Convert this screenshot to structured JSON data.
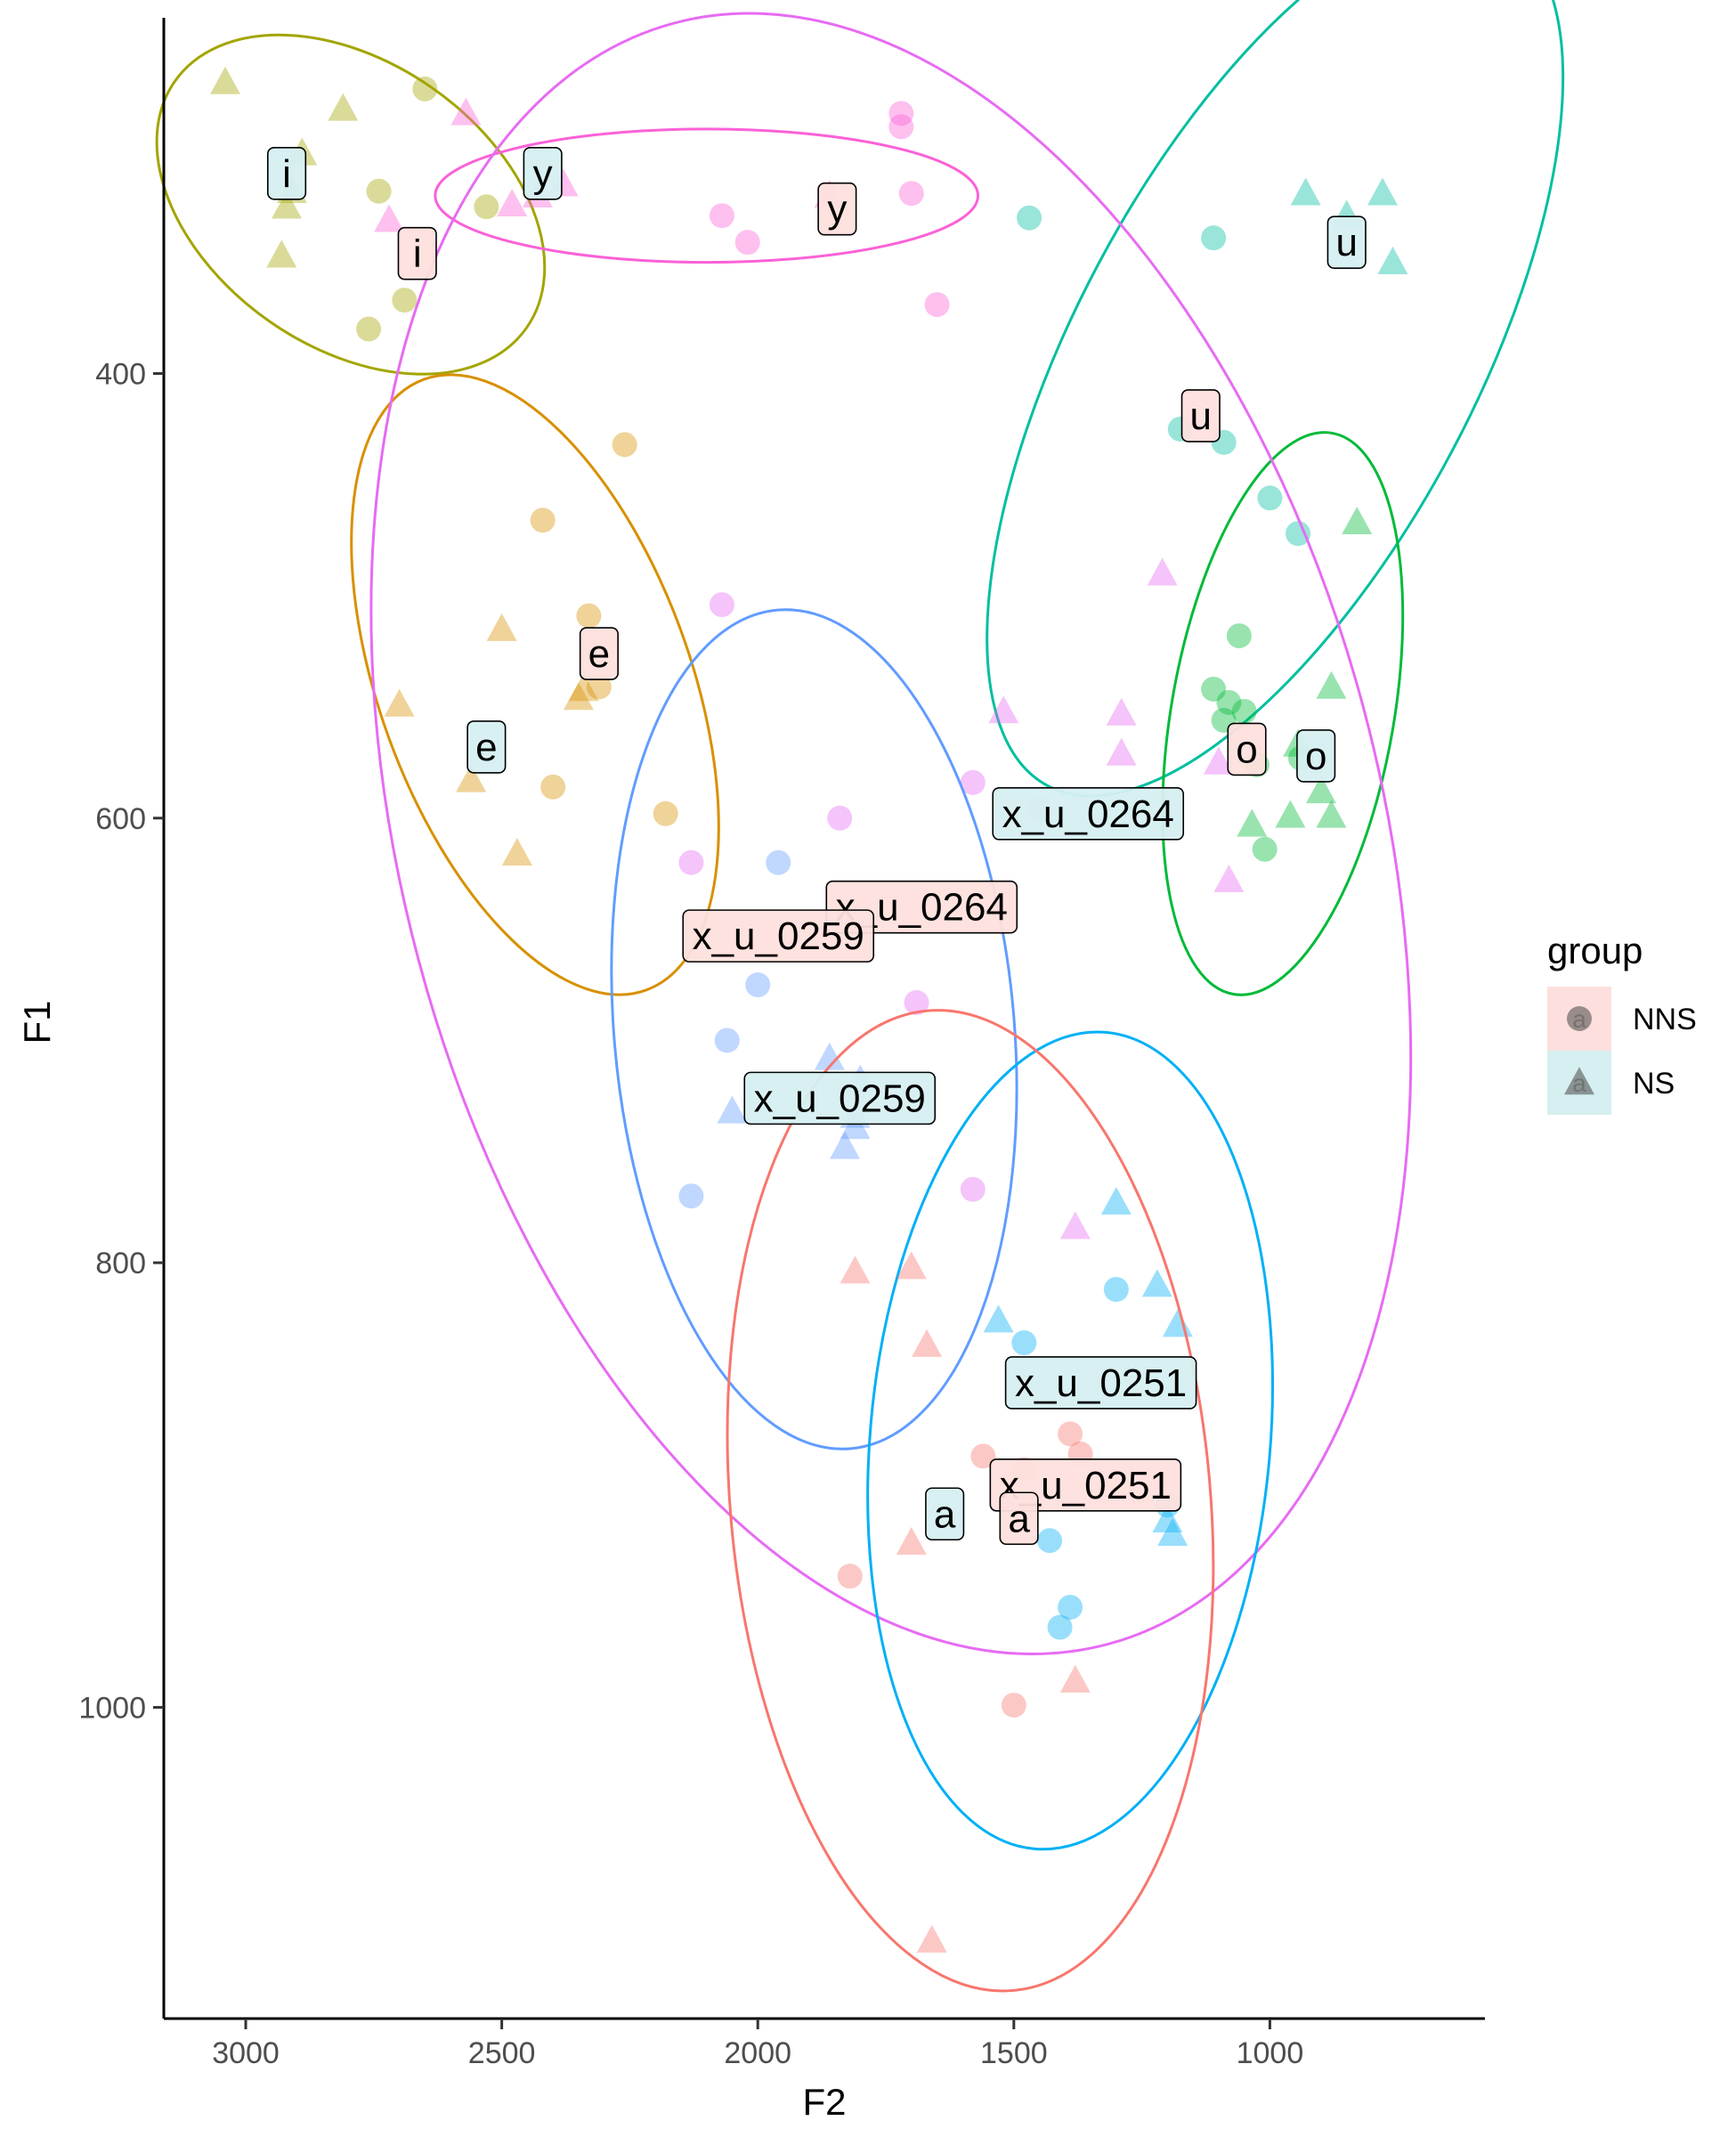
{
  "chart_data": {
    "type": "scatter",
    "title": "",
    "xlabel": "F2",
    "ylabel": "F1",
    "x_axis_reversed": true,
    "y_axis_reversed": true,
    "xlim": [
      3160,
      580
    ],
    "ylim": [
      1140,
      240
    ],
    "x_ticks": [
      3000,
      2500,
      2000,
      1500,
      1000
    ],
    "x_tick_labels": [
      "3000",
      "2500",
      "2000",
      "1500",
      "1000"
    ],
    "y_ticks": [
      400,
      600,
      800,
      1000
    ],
    "y_tick_labels": [
      "400",
      "600",
      "800",
      "1000"
    ],
    "grid": false,
    "legend": {
      "title": "group",
      "position": "right",
      "entries": [
        {
          "label": "NNS",
          "shape": "circle",
          "key_glyph": "a",
          "fill": "#fde0dd"
        },
        {
          "label": "NS",
          "shape": "triangle",
          "key_glyph": "a",
          "fill": "#d6eff1"
        }
      ]
    },
    "group_label_fills": {
      "NNS": "#fde0dd",
      "NS": "#d6eff1"
    },
    "vowels": [
      {
        "vowel": "i",
        "color": "#a3a500",
        "NNS": [
          [
            2650,
            272
          ],
          [
            2740,
            318
          ],
          [
            2760,
            380
          ],
          [
            2690,
            367
          ],
          [
            2530,
            325
          ]
        ],
        "NS": [
          [
            3040,
            269
          ],
          [
            2810,
            281
          ],
          [
            2890,
            301
          ],
          [
            2910,
            318
          ],
          [
            2920,
            325
          ],
          [
            2930,
            347
          ]
        ],
        "ellipse": {
          "cx": 2795,
          "cy": 324,
          "rx": 160,
          "ry": 64,
          "angle_deg": 35
        }
      },
      {
        "vowel": "y",
        "color": "#fb61d7",
        "NNS": [
          [
            1720,
            289
          ],
          [
            1700,
            319
          ],
          [
            2070,
            329
          ],
          [
            2020,
            341
          ],
          [
            1650,
            369
          ],
          [
            1720,
            283
          ]
        ],
        "NS": [
          [
            2570,
            283
          ],
          [
            2480,
            324
          ],
          [
            2380,
            315
          ],
          [
            2430,
            320
          ],
          [
            2720,
            331
          ],
          [
            1860,
            320
          ]
        ],
        "ellipse": {
          "cx": 2100,
          "cy": 320,
          "rx": 530,
          "ry": 30,
          "angle_deg": 0
        }
      },
      {
        "vowel": "u",
        "color": "#00bfa0",
        "NNS": [
          [
            1470,
            330
          ],
          [
            1110,
            339
          ],
          [
            1090,
            431
          ],
          [
            1175,
            425
          ],
          [
            1000,
            456
          ],
          [
            945,
            472
          ]
        ],
        "NS": [
          [
            930,
            319
          ],
          [
            850,
            329
          ],
          [
            780,
            319
          ],
          [
            760,
            350
          ]
        ],
        "ellipse": {
          "cx": 990,
          "cy": 393,
          "rx": 245,
          "ry": 90,
          "angle_deg": 118
        }
      },
      {
        "vowel": "o",
        "color": "#00ba38",
        "NNS": [
          [
            1060,
            518
          ],
          [
            1110,
            542
          ],
          [
            1080,
            548
          ],
          [
            1050,
            552
          ],
          [
            1025,
            576
          ],
          [
            1090,
            556
          ],
          [
            1010,
            614
          ],
          [
            940,
            573
          ]
        ],
        "NS": [
          [
            830,
            467
          ],
          [
            880,
            541
          ],
          [
            945,
            567
          ],
          [
            900,
            588
          ],
          [
            1035,
            603
          ],
          [
            960,
            599
          ],
          [
            880,
            599
          ]
        ],
        "ellipse": {
          "cx": 975,
          "cy": 553,
          "rx": 130,
          "ry": 50,
          "angle_deg": 100
        }
      },
      {
        "vowel": "e",
        "color": "#d89000",
        "NNS": [
          [
            2260,
            432
          ],
          [
            2420,
            466
          ],
          [
            2330,
            509
          ],
          [
            2310,
            541
          ],
          [
            2400,
            586
          ],
          [
            2180,
            598
          ]
        ],
        "NS": [
          [
            2500,
            515
          ],
          [
            2700,
            549
          ],
          [
            2350,
            546
          ],
          [
            2340,
            542
          ],
          [
            2560,
            583
          ],
          [
            2470,
            616
          ]
        ],
        "ellipse": {
          "cx": 2435,
          "cy": 540,
          "rx": 155,
          "ry": 70,
          "angle_deg": 70
        }
      },
      {
        "vowel": "x_u_0264",
        "color": "#e76bf3",
        "NNS": [
          [
            2070,
            504
          ],
          [
            1580,
            584
          ],
          [
            1840,
            600
          ],
          [
            2130,
            620
          ],
          [
            1450,
            596
          ],
          [
            1690,
            683
          ],
          [
            1580,
            767
          ]
        ],
        "NS": [
          [
            1210,
            490
          ],
          [
            1520,
            552
          ],
          [
            1290,
            553
          ],
          [
            1290,
            571
          ],
          [
            1100,
            575
          ],
          [
            1080,
            628
          ],
          [
            1380,
            784
          ]
        ],
        "ellipse": {
          "cx": 1740,
          "cy": 607,
          "rx": 390,
          "ry": 220,
          "angle_deg": 75
        }
      },
      {
        "vowel": "x_u_0259",
        "color": "#619cff",
        "NNS": [
          [
            1960,
            620
          ],
          [
            2000,
            675
          ],
          [
            2060,
            700
          ],
          [
            2130,
            770
          ]
        ],
        "NS": [
          [
            1860,
            708
          ],
          [
            1800,
            718
          ],
          [
            1810,
            734
          ],
          [
            1810,
            739
          ],
          [
            2050,
            732
          ],
          [
            1830,
            748
          ]
        ],
        "ellipse": {
          "cx": 1890,
          "cy": 695,
          "rx": 190,
          "ry": 90,
          "angle_deg": 85
        }
      },
      {
        "vowel": "x_u_0251",
        "color": "#00b0f6",
        "NNS": [
          [
            1300,
            812
          ],
          [
            1480,
            836
          ],
          [
            1430,
            925
          ],
          [
            1410,
            964
          ],
          [
            1390,
            955
          ],
          [
            1200,
            909
          ]
        ],
        "NS": [
          [
            1300,
            773
          ],
          [
            1220,
            810
          ],
          [
            1180,
            828
          ],
          [
            1530,
            826
          ],
          [
            1200,
            916
          ],
          [
            1190,
            922
          ]
        ],
        "ellipse": {
          "cx": 1390,
          "cy": 880,
          "rx": 185,
          "ry": 90,
          "angle_deg": 95
        }
      },
      {
        "vowel": "a",
        "color": "#f8766d",
        "NNS": [
          [
            1560,
            887
          ],
          [
            1480,
            893
          ],
          [
            1390,
            877
          ],
          [
            1370,
            886
          ],
          [
            1820,
            941
          ],
          [
            1500,
            999
          ]
        ],
        "NS": [
          [
            1810,
            804
          ],
          [
            1700,
            802
          ],
          [
            1670,
            837
          ],
          [
            1700,
            926
          ],
          [
            1380,
            988
          ],
          [
            1660,
            1105
          ]
        ],
        "ellipse": {
          "cx": 1585,
          "cy": 907,
          "rx": 222,
          "ry": 108,
          "angle_deg": 85
        }
      }
    ],
    "labels": [
      {
        "text": "i",
        "group": "NS",
        "x": 2920,
        "y": 310
      },
      {
        "text": "i",
        "group": "NNS",
        "x": 2665,
        "y": 346
      },
      {
        "text": "y",
        "group": "NS",
        "x": 2420,
        "y": 310
      },
      {
        "text": "y",
        "group": "NNS",
        "x": 1845,
        "y": 326
      },
      {
        "text": "u",
        "group": "NS",
        "x": 850,
        "y": 341
      },
      {
        "text": "u",
        "group": "NNS",
        "x": 1135,
        "y": 419
      },
      {
        "text": "e",
        "group": "NNS",
        "x": 2310,
        "y": 526
      },
      {
        "text": "e",
        "group": "NS",
        "x": 2530,
        "y": 568
      },
      {
        "text": "o",
        "group": "NNS",
        "x": 1045,
        "y": 569
      },
      {
        "text": "o",
        "group": "NS",
        "x": 910,
        "y": 572
      },
      {
        "text": "x_u_0264",
        "group": "NS",
        "x": 1355,
        "y": 598
      },
      {
        "text": "x_u_0264",
        "group": "NNS",
        "x": 1680,
        "y": 640
      },
      {
        "text": "x_u_0259",
        "group": "NNS",
        "x": 1960,
        "y": 653
      },
      {
        "text": "x_u_0259",
        "group": "NS",
        "x": 1840,
        "y": 726
      },
      {
        "text": "x_u_0251",
        "group": "NS",
        "x": 1330,
        "y": 854
      },
      {
        "text": "x_u_0251",
        "group": "NNS",
        "x": 1360,
        "y": 900
      },
      {
        "text": "a",
        "group": "NS",
        "x": 1635,
        "y": 913
      },
      {
        "text": "a",
        "group": "NNS",
        "x": 1490,
        "y": 915
      }
    ]
  }
}
